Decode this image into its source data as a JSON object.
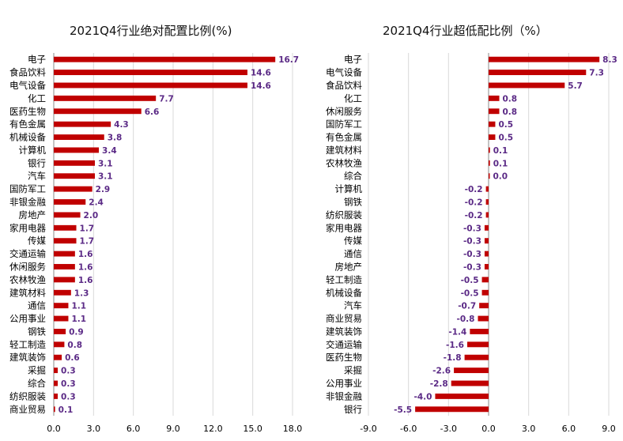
{
  "colors": {
    "bar": "#c00000",
    "value_label": "#5b2a86",
    "grid": "#d9d9d9",
    "axis": "#888888"
  },
  "chart_data": [
    {
      "type": "bar",
      "orientation": "horizontal",
      "title": "2021Q4行业绝对配置比例(%)",
      "xlim": [
        0,
        18
      ],
      "xticks": [
        "0.0",
        "3.0",
        "6.0",
        "9.0",
        "12.0",
        "15.0",
        "18.0"
      ],
      "grid": true,
      "categories": [
        "电子",
        "食品饮料",
        "电气设备",
        "化工",
        "医药生物",
        "有色金属",
        "机械设备",
        "计算机",
        "银行",
        "汽车",
        "国防军工",
        "非银金融",
        "房地产",
        "家用电器",
        "传媒",
        "交通运输",
        "休闲服务",
        "农林牧渔",
        "建筑材料",
        "通信",
        "公用事业",
        "钢铁",
        "轻工制造",
        "建筑装饰",
        "采掘",
        "综合",
        "纺织服装",
        "商业贸易"
      ],
      "values": [
        16.7,
        14.6,
        14.6,
        7.7,
        6.6,
        4.3,
        3.8,
        3.4,
        3.1,
        3.1,
        2.9,
        2.4,
        2.0,
        1.7,
        1.7,
        1.6,
        1.6,
        1.6,
        1.3,
        1.1,
        1.1,
        0.9,
        0.8,
        0.6,
        0.3,
        0.3,
        0.3,
        0.1
      ],
      "value_labels": [
        "16.7",
        "14.6",
        "14.6",
        "7.7",
        "6.6",
        "4.3",
        "3.8",
        "3.4",
        "3.1",
        "3.1",
        "2.9",
        "2.4",
        "2.0",
        "1.7",
        "1.7",
        "1.6",
        "1.6",
        "1.6",
        "1.3",
        "1.1",
        "1.1",
        "0.9",
        "0.8",
        "0.6",
        "0.3",
        "0.3",
        "0.3",
        "0.1"
      ]
    },
    {
      "type": "bar",
      "orientation": "horizontal",
      "title": "2021Q4行业超低配比例（%）",
      "xlim": [
        -9,
        9
      ],
      "xticks": [
        "-9.0",
        "-6.0",
        "-3.0",
        "0.0",
        "3.0",
        "6.0",
        "9.0"
      ],
      "grid": true,
      "categories": [
        "电子",
        "电气设备",
        "食品饮料",
        "化工",
        "休闲服务",
        "国防军工",
        "有色金属",
        "建筑材料",
        "农林牧渔",
        "综合",
        "计算机",
        "钢铁",
        "纺织服装",
        "家用电器",
        "传媒",
        "通信",
        "房地产",
        "轻工制造",
        "机械设备",
        "汽车",
        "商业贸易",
        "建筑装饰",
        "交通运输",
        "医药生物",
        "采掘",
        "公用事业",
        "非银金融",
        "银行"
      ],
      "values": [
        8.3,
        7.3,
        5.7,
        0.8,
        0.8,
        0.5,
        0.5,
        0.1,
        0.1,
        0.0,
        -0.2,
        -0.2,
        -0.2,
        -0.3,
        -0.3,
        -0.3,
        -0.3,
        -0.5,
        -0.5,
        -0.7,
        -0.8,
        -1.4,
        -1.6,
        -1.8,
        -2.6,
        -2.8,
        -4.0,
        -5.5
      ],
      "value_labels": [
        "8.3",
        "7.3",
        "5.7",
        "0.8",
        "0.8",
        "0.5",
        "0.5",
        "0.1",
        "0.1",
        "0.0",
        "-0.2",
        "-0.2",
        "-0.2",
        "-0.3",
        "-0.3",
        "-0.3",
        "-0.3",
        "-0.5",
        "-0.5",
        "-0.7",
        "-0.8",
        "-1.4",
        "-1.6",
        "-1.8",
        "-2.6",
        "-2.8",
        "-4.0",
        "-5.5"
      ]
    }
  ]
}
